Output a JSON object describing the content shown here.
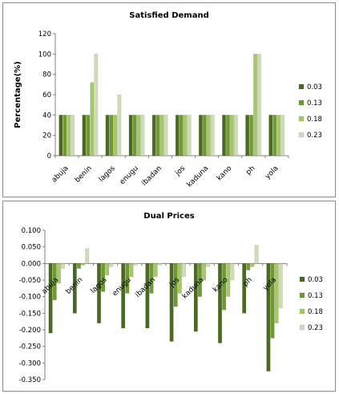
{
  "legend_colors": [
    "#4a6b1f",
    "#6f9a2e",
    "#a6c86b",
    "#cfdcb8"
  ],
  "chart_data": [
    {
      "type": "bar",
      "title": "Satisfied Demand",
      "xlabel": "",
      "ylabel": "Percentage(%)",
      "ylim": [
        0,
        120
      ],
      "yticks": [
        "0",
        "20",
        "40",
        "60",
        "80",
        "100",
        "120"
      ],
      "categories": [
        "abuja",
        "benin",
        "lagos",
        "enugu",
        "ibadan",
        "jos",
        "kaduna",
        "kano",
        "ph",
        "yola"
      ],
      "legend_position": "right",
      "grid": false,
      "series": [
        {
          "name": "0.03",
          "values": [
            40,
            40,
            40,
            40,
            40,
            40,
            40,
            40,
            40,
            40
          ]
        },
        {
          "name": "0.13",
          "values": [
            40,
            40,
            40,
            40,
            40,
            40,
            40,
            40,
            40,
            40
          ]
        },
        {
          "name": "0.18",
          "values": [
            40,
            72,
            40,
            40,
            40,
            40,
            40,
            40,
            100,
            40
          ]
        },
        {
          "name": "0.23",
          "values": [
            40,
            100,
            60,
            40,
            40,
            40,
            40,
            40,
            100,
            40
          ]
        }
      ]
    },
    {
      "type": "bar",
      "title": "Dual Prices",
      "xlabel": "",
      "ylabel": "",
      "ylim": [
        -0.35,
        0.1
      ],
      "yticks": [
        "-0.350",
        "-0.300",
        "-0.250",
        "-0.200",
        "-0.150",
        "-0.100",
        "-0.050",
        "0.000",
        "0.050",
        "0.100"
      ],
      "categories": [
        "abuja",
        "benin",
        "lagos",
        "enugu",
        "ibadan",
        "jos",
        "kaduna",
        "kano",
        "ph",
        "yola"
      ],
      "legend_position": "right",
      "grid": false,
      "series": [
        {
          "name": "0.03",
          "values": [
            -0.21,
            -0.15,
            -0.18,
            -0.195,
            -0.195,
            -0.235,
            -0.205,
            -0.24,
            -0.15,
            -0.325
          ]
        },
        {
          "name": "0.13",
          "values": [
            -0.11,
            -0.015,
            -0.085,
            -0.09,
            -0.09,
            -0.13,
            -0.1,
            -0.14,
            -0.02,
            -0.225
          ]
        },
        {
          "name": "0.18",
          "values": [
            -0.06,
            -0.005,
            -0.035,
            -0.04,
            -0.04,
            -0.09,
            -0.05,
            -0.1,
            -0.01,
            -0.18
          ]
        },
        {
          "name": "0.23",
          "values": [
            -0.015,
            0.045,
            -0.01,
            -0.005,
            -0.005,
            -0.04,
            -0.01,
            -0.05,
            0.055,
            -0.135
          ]
        }
      ]
    }
  ]
}
